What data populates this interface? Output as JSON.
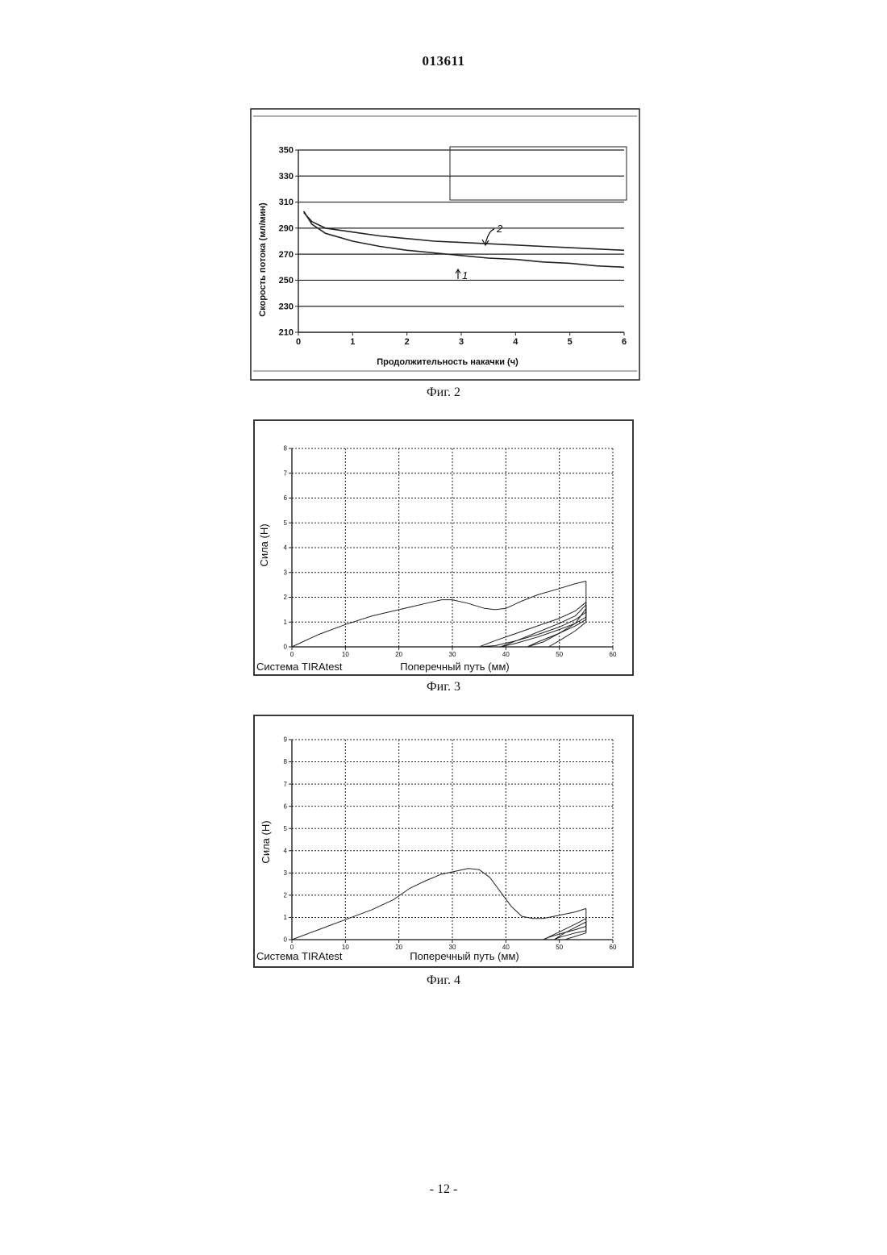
{
  "header": {
    "doc_number": "013611"
  },
  "footer": {
    "page": "- 12 -"
  },
  "figures": [
    {
      "caption": "Фиг. 2"
    },
    {
      "caption": "Фиг. 3",
      "system_label": "Система TIRAtest"
    },
    {
      "caption": "Фиг. 4",
      "system_label": "Система TIRAtest"
    }
  ],
  "chart_data": [
    {
      "type": "line",
      "xlabel": "Продолжительность накачки (ч)",
      "ylabel": "Скорость потока (мл/мин)",
      "xlim": [
        0,
        6
      ],
      "ylim": [
        210,
        350
      ],
      "x_ticks": [
        "0",
        "1",
        "2",
        "3",
        "4",
        "5",
        "6"
      ],
      "y_ticks": [
        "210",
        "230",
        "250",
        "270",
        "290",
        "310",
        "330",
        "350"
      ],
      "grid": "horizontal",
      "legend": "top-right (empty box)",
      "annotations": [
        "2",
        "1"
      ],
      "series": [
        {
          "name": "2",
          "x": [
            0.1,
            0.25,
            0.5,
            1,
            1.5,
            2,
            2.5,
            3,
            3.5,
            4,
            4.5,
            5,
            5.5,
            6
          ],
          "y": [
            302,
            295,
            290,
            287,
            284,
            282,
            280,
            279,
            278,
            277,
            276,
            275,
            274,
            273
          ]
        },
        {
          "name": "1",
          "x": [
            0.1,
            0.25,
            0.5,
            1,
            1.5,
            2,
            2.5,
            3,
            3.5,
            4,
            4.5,
            5,
            5.5,
            6
          ],
          "y": [
            303,
            293,
            286,
            280,
            276,
            273,
            271,
            269,
            267,
            266,
            264,
            263,
            261,
            260
          ]
        }
      ]
    },
    {
      "type": "line",
      "xlabel": "Поперечный путь (мм)",
      "ylabel": "Сила (Н)",
      "xlim": [
        0,
        60
      ],
      "ylim": [
        0,
        8
      ],
      "x_ticks": [
        "0",
        "10",
        "20",
        "30",
        "40",
        "50",
        "60"
      ],
      "y_ticks": [
        "0",
        "1",
        "2",
        "3",
        "4",
        "5",
        "6",
        "7",
        "8"
      ],
      "grid": "dotted",
      "series": [
        {
          "x": [
            0,
            5,
            10,
            15,
            20,
            25,
            28,
            30,
            33,
            36,
            38,
            40,
            43,
            46,
            50,
            53,
            55
          ],
          "y": [
            0,
            0.5,
            0.9,
            1.25,
            1.5,
            1.75,
            1.9,
            1.9,
            1.75,
            1.55,
            1.5,
            1.55,
            1.85,
            2.1,
            2.35,
            2.55,
            2.65
          ]
        },
        {
          "x": [
            55,
            55,
            53,
            50,
            46,
            42,
            38,
            35
          ],
          "y": [
            2.65,
            1.4,
            1.1,
            0.8,
            0.5,
            0.25,
            0.05,
            0
          ]
        },
        {
          "x": [
            35,
            38,
            42,
            46,
            50,
            53,
            55,
            55,
            53,
            50,
            46,
            42,
            39
          ],
          "y": [
            0,
            0.25,
            0.55,
            0.85,
            1.15,
            1.45,
            1.8,
            1.2,
            0.95,
            0.7,
            0.4,
            0.15,
            0
          ]
        },
        {
          "x": [
            39,
            42,
            46,
            50,
            53,
            55,
            55,
            53,
            50,
            47,
            44
          ],
          "y": [
            0,
            0.25,
            0.6,
            0.95,
            1.25,
            1.7,
            1.1,
            0.85,
            0.55,
            0.2,
            0
          ]
        },
        {
          "x": [
            44,
            46,
            50,
            53,
            55,
            55,
            53,
            50,
            48
          ],
          "y": [
            0,
            0.2,
            0.55,
            0.95,
            1.55,
            1.0,
            0.65,
            0.25,
            0
          ]
        }
      ]
    },
    {
      "type": "line",
      "xlabel": "Поперечный путь (мм)",
      "ylabel": "Сила (Н)",
      "xlim": [
        0,
        60
      ],
      "ylim": [
        0,
        9
      ],
      "x_ticks": [
        "0",
        "10",
        "20",
        "30",
        "40",
        "50",
        "60"
      ],
      "y_ticks": [
        "0",
        "1",
        "2",
        "3",
        "4",
        "5",
        "6",
        "7",
        "8",
        "9"
      ],
      "grid": "dotted",
      "series": [
        {
          "x": [
            0,
            5,
            10,
            15,
            19,
            22,
            25,
            28,
            30,
            33,
            35,
            37,
            39,
            41,
            43,
            45,
            47,
            50,
            53,
            55
          ],
          "y": [
            0,
            0.45,
            0.9,
            1.35,
            1.8,
            2.3,
            2.65,
            2.95,
            3.05,
            3.2,
            3.15,
            2.8,
            2.15,
            1.5,
            1.05,
            0.95,
            0.95,
            1.1,
            1.25,
            1.4
          ]
        },
        {
          "x": [
            55,
            55,
            53,
            50,
            48,
            47
          ],
          "y": [
            1.4,
            0.6,
            0.45,
            0.25,
            0.1,
            0
          ]
        },
        {
          "x": [
            47,
            50,
            53,
            55,
            55,
            53,
            50,
            49
          ],
          "y": [
            0,
            0.35,
            0.7,
            0.95,
            0.4,
            0.3,
            0.1,
            0
          ]
        },
        {
          "x": [
            49,
            51,
            53,
            55,
            55,
            53,
            51
          ],
          "y": [
            0,
            0.3,
            0.55,
            0.8,
            0.3,
            0.15,
            0
          ]
        }
      ]
    }
  ]
}
